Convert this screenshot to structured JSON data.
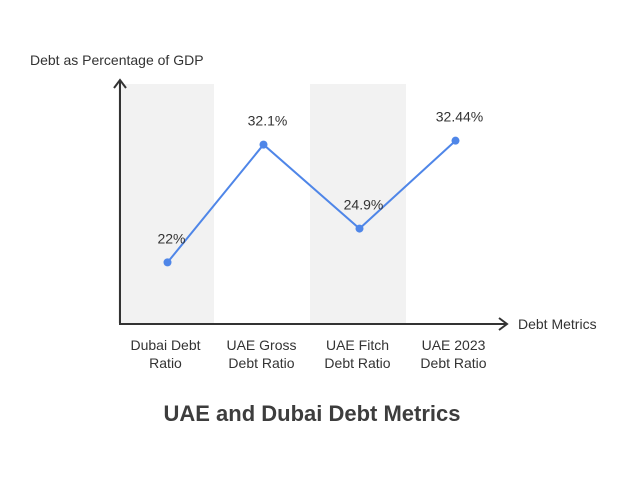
{
  "chart_data": {
    "type": "line",
    "title": "UAE and Dubai Debt Metrics",
    "ylabel": "Debt as Percentage of GDP",
    "xlabel": "Debt Metrics",
    "categories": [
      [
        "Dubai Debt",
        "Ratio"
      ],
      [
        "UAE Gross",
        "Debt Ratio"
      ],
      [
        "UAE Fitch",
        "Debt Ratio"
      ],
      [
        "UAE 2023",
        "Debt Ratio"
      ]
    ],
    "values": [
      22,
      32.1,
      24.9,
      32.44
    ],
    "data_labels": [
      "22%",
      "32.1%",
      "24.9%",
      "32.44%"
    ],
    "ylim": [
      16.8,
      37.3
    ],
    "grid": false,
    "alternating_bands": true,
    "colors": {
      "line": "#4f86e8",
      "band": "#f2f2f2",
      "axis": "#333333"
    }
  }
}
